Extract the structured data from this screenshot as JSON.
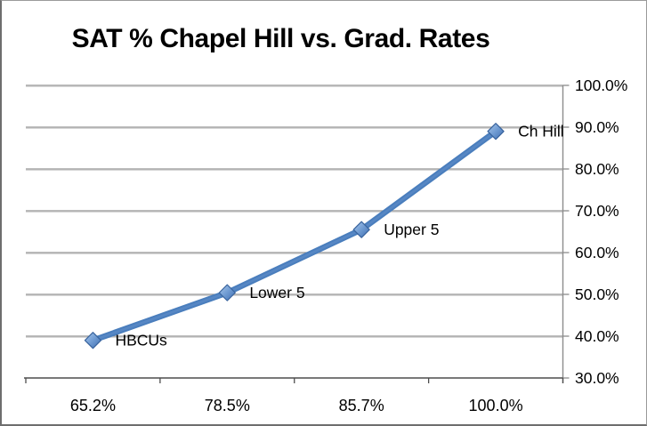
{
  "window": {
    "background": "#ffffff",
    "border_color": "#6e6e6e"
  },
  "chart_data": {
    "type": "line",
    "title": "SAT % Chapel Hill vs. Grad. Rates",
    "categories": [
      "65.2%",
      "78.5%",
      "85.7%",
      "100.0%"
    ],
    "values": [
      39,
      50.4,
      65.5,
      89
    ],
    "point_labels": [
      "HBCUs",
      "Lower 5",
      "Upper 5",
      "Ch Hill"
    ],
    "xlabel": "",
    "ylabel": "",
    "ylim": [
      30,
      100
    ],
    "y_tick_step": 10,
    "y_tick_labels": [
      "30.0%",
      "40.0%",
      "50.0%",
      "60.0%",
      "70.0%",
      "80.0%",
      "90.0%",
      "100.0%"
    ],
    "y_axis_side": "right",
    "grid": true,
    "legend": "none",
    "colors": {
      "line": "#4a7ebd",
      "line_highlight": "#5d8bc8",
      "marker_fill_light": "#aac8eb",
      "marker_fill_mid": "#6f9bd2",
      "marker_fill_dark": "#3e6db0",
      "marker_border": "#38639d",
      "gridline": "#949494",
      "gridline_shadow": "#d2d2d2",
      "x_axis": "#4d4d4d",
      "y_axis": "#8c8c8c",
      "text": "#000000"
    }
  }
}
